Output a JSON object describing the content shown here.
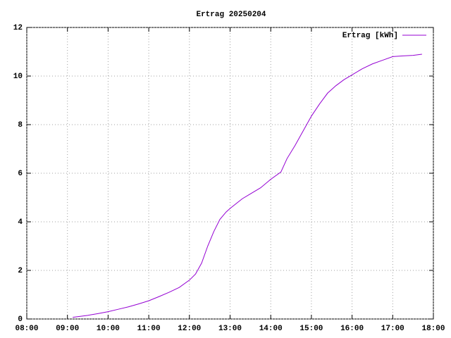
{
  "chart_data": {
    "type": "line",
    "title": "Ertrag 20250204",
    "x": [
      9.13,
      9.5,
      9.75,
      10.0,
      10.25,
      10.5,
      10.75,
      11.0,
      11.25,
      11.5,
      11.75,
      12.0,
      12.15,
      12.3,
      12.45,
      12.6,
      12.75,
      12.9,
      13.0,
      13.15,
      13.3,
      13.5,
      13.75,
      14.0,
      14.25,
      14.4,
      14.6,
      14.8,
      15.0,
      15.2,
      15.4,
      15.6,
      15.8,
      16.0,
      16.25,
      16.5,
      16.75,
      17.0,
      17.25,
      17.5,
      17.72
    ],
    "series": [
      {
        "name": "Ertrag [kWh]",
        "color": "#9400d3",
        "values": [
          0.07,
          0.15,
          0.22,
          0.3,
          0.4,
          0.5,
          0.62,
          0.75,
          0.92,
          1.1,
          1.3,
          1.6,
          1.85,
          2.3,
          3.0,
          3.6,
          4.1,
          4.4,
          4.55,
          4.75,
          4.95,
          5.15,
          5.4,
          5.75,
          6.05,
          6.6,
          7.15,
          7.75,
          8.35,
          8.85,
          9.3,
          9.6,
          9.85,
          10.05,
          10.3,
          10.5,
          10.65,
          10.8,
          10.83,
          10.85,
          10.9
        ]
      }
    ],
    "xlim": [
      8,
      18
    ],
    "xticks": [
      {
        "value": 8,
        "label": "08:00"
      },
      {
        "value": 9,
        "label": "09:00"
      },
      {
        "value": 10,
        "label": "10:00"
      },
      {
        "value": 11,
        "label": "11:00"
      },
      {
        "value": 12,
        "label": "12:00"
      },
      {
        "value": 13,
        "label": "13:00"
      },
      {
        "value": 14,
        "label": "14:00"
      },
      {
        "value": 15,
        "label": "15:00"
      },
      {
        "value": 16,
        "label": "16:00"
      },
      {
        "value": 17,
        "label": "17:00"
      },
      {
        "value": 18,
        "label": "18:00"
      }
    ],
    "ylim": [
      0,
      12
    ],
    "yticks": [
      0,
      2,
      4,
      6,
      8,
      10,
      12
    ],
    "grid": true,
    "legend": "top-right"
  }
}
